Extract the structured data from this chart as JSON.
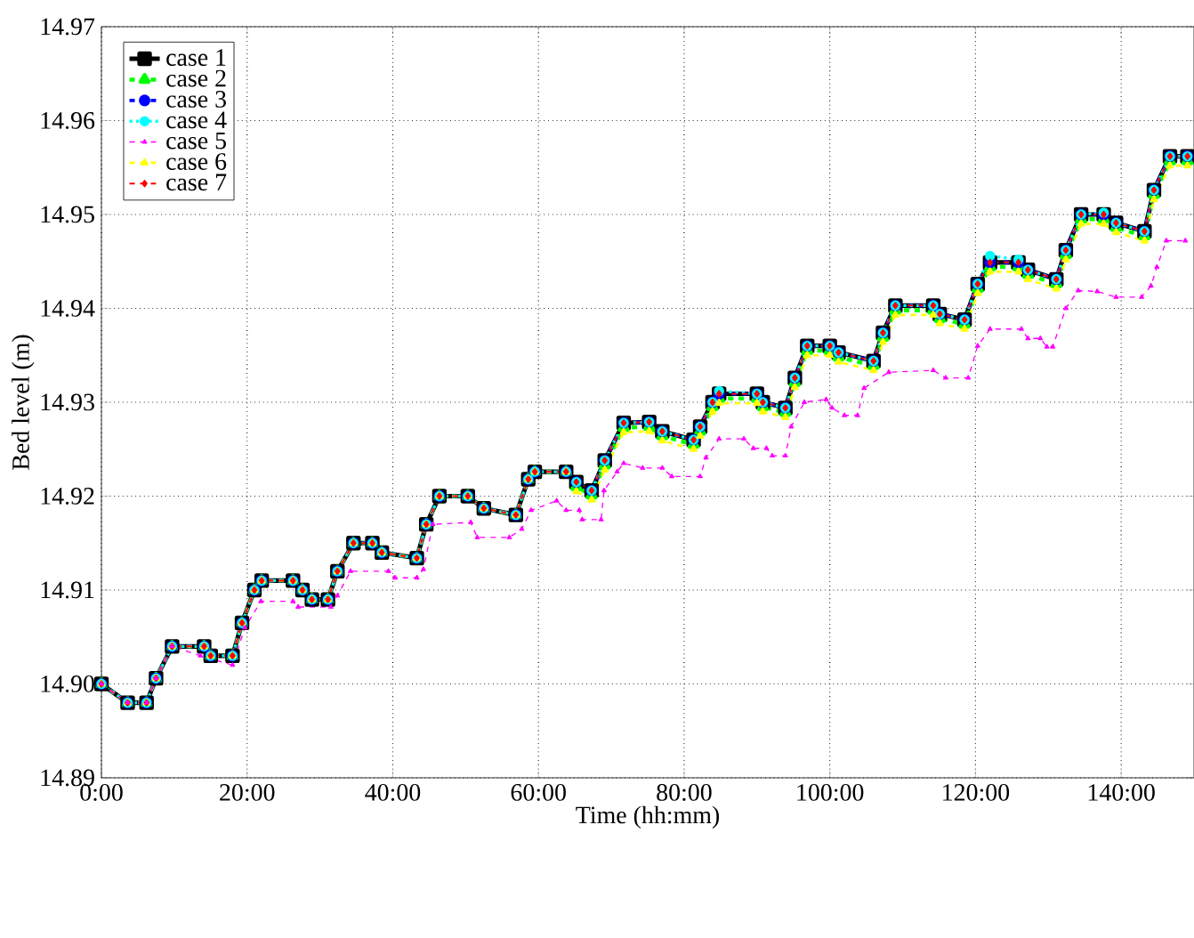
{
  "chart_data": {
    "type": "line",
    "xlabel": "Time (hh:mm)",
    "ylabel": "Bed level (m)",
    "x": [
      0,
      3.6,
      6.2,
      7.5,
      9.7,
      14.1,
      15,
      18,
      19.3,
      21,
      22,
      26.3,
      27.6,
      28.9,
      31.1,
      32.4,
      34.6,
      37.2,
      38.5,
      43.3,
      44.6,
      46.4,
      50.3,
      52.5,
      56.9,
      58.6,
      59.5,
      63.8,
      65.2,
      67.3,
      69.1,
      71.7,
      75.2,
      77,
      81.3,
      82.2,
      83.9,
      84.8,
      90,
      90.8,
      93.9,
      95.2,
      96.9,
      100,
      101.2,
      106,
      107.3,
      109,
      114.2,
      115.1,
      118.5,
      120.3,
      122,
      125.9,
      127.2,
      131.1,
      132.4,
      134.5,
      137.6,
      139.3,
      143.2,
      144.5,
      146.7,
      149.1
    ],
    "series": [
      {
        "name": "case 1",
        "color": "#000000",
        "marker": "square",
        "line_style": "solid",
        "values": [
          14.9,
          14.898,
          14.898,
          14.9006,
          14.904,
          14.904,
          14.903,
          14.903,
          14.9065,
          14.91,
          14.911,
          14.911,
          14.91,
          14.909,
          14.909,
          14.912,
          14.915,
          14.915,
          14.914,
          14.9134,
          14.917,
          14.92,
          14.92,
          14.9187,
          14.918,
          14.9218,
          14.9226,
          14.9226,
          14.9215,
          14.9206,
          14.9238,
          14.9278,
          14.9279,
          14.9269,
          14.926,
          14.9274,
          14.93,
          14.9309,
          14.9309,
          14.93,
          14.9294,
          14.9326,
          14.936,
          14.936,
          14.9353,
          14.9344,
          14.9374,
          14.9403,
          14.9403,
          14.9394,
          14.9388,
          14.9426,
          14.9449,
          14.9449,
          14.9441,
          14.9431,
          14.9462,
          14.95,
          14.95,
          14.9491,
          14.9482,
          14.9526,
          14.9562,
          14.9562
        ]
      },
      {
        "name": "case 2",
        "color": "#00ff00",
        "marker": "triangle",
        "line_style": "dashed",
        "values": [
          14.9,
          14.898,
          14.898,
          14.9006,
          14.904,
          14.904,
          14.903,
          14.903,
          14.9065,
          14.91,
          14.911,
          14.911,
          14.91,
          14.909,
          14.909,
          14.912,
          14.915,
          14.915,
          14.914,
          14.9134,
          14.917,
          14.92,
          14.92,
          14.9187,
          14.918,
          14.9218,
          14.9226,
          14.9226,
          14.921,
          14.9201,
          14.9233,
          14.9273,
          14.9274,
          14.9264,
          14.9255,
          14.9269,
          14.9295,
          14.9304,
          14.9304,
          14.9295,
          14.9289,
          14.9321,
          14.9355,
          14.9355,
          14.9348,
          14.9339,
          14.9369,
          14.9398,
          14.9398,
          14.9389,
          14.9383,
          14.9421,
          14.9444,
          14.9444,
          14.9436,
          14.9426,
          14.9457,
          14.9495,
          14.9495,
          14.9486,
          14.9477,
          14.9521,
          14.9557,
          14.9557
        ]
      },
      {
        "name": "case 3",
        "color": "#0000ff",
        "marker": "circle",
        "line_style": "dashed",
        "values": [
          14.9,
          14.898,
          14.898,
          14.9006,
          14.904,
          14.904,
          14.903,
          14.903,
          14.9065,
          14.91,
          14.911,
          14.911,
          14.91,
          14.909,
          14.909,
          14.912,
          14.915,
          14.915,
          14.914,
          14.9134,
          14.917,
          14.92,
          14.92,
          14.9187,
          14.918,
          14.9218,
          14.9226,
          14.9226,
          14.9215,
          14.9206,
          14.9238,
          14.9278,
          14.9279,
          14.9269,
          14.926,
          14.9274,
          14.93,
          14.9309,
          14.9309,
          14.93,
          14.9294,
          14.9326,
          14.936,
          14.936,
          14.9353,
          14.9344,
          14.9374,
          14.9403,
          14.9403,
          14.9394,
          14.9388,
          14.9426,
          14.9449,
          14.9449,
          14.9441,
          14.9431,
          14.9462,
          14.95,
          14.95,
          14.9491,
          14.9482,
          14.9526,
          14.9562,
          14.9562
        ]
      },
      {
        "name": "case 4",
        "color": "#00ffff",
        "marker": "circle",
        "line_style": "dotted",
        "values": [
          14.9,
          14.898,
          14.898,
          14.9006,
          14.904,
          14.904,
          14.903,
          14.903,
          14.9065,
          14.91,
          14.911,
          14.911,
          14.91,
          14.909,
          14.909,
          14.912,
          14.915,
          14.915,
          14.914,
          14.9134,
          14.917,
          14.92,
          14.92,
          14.9187,
          14.918,
          14.9218,
          14.9226,
          14.9226,
          14.9215,
          14.9206,
          14.9238,
          14.9278,
          14.9279,
          14.9269,
          14.926,
          14.9274,
          14.93,
          14.9312,
          14.9309,
          14.93,
          14.9294,
          14.9326,
          14.936,
          14.936,
          14.9353,
          14.9344,
          14.9374,
          14.9403,
          14.9403,
          14.9394,
          14.9388,
          14.9426,
          14.9456,
          14.9452,
          14.9441,
          14.9431,
          14.9462,
          14.95,
          14.9502,
          14.9491,
          14.9482,
          14.9526,
          14.9562,
          14.9562
        ]
      },
      {
        "name": "case 5",
        "color": "#ff00ff",
        "marker": "triangle",
        "line_style": "dashed",
        "x": [
          0,
          3.6,
          6.2,
          7.5,
          9.7,
          13.6,
          18,
          19.7,
          21.9,
          26.3,
          27,
          31.5,
          32.4,
          34.2,
          39.4,
          40.3,
          43.3,
          44.2,
          45.5,
          50.7,
          51.6,
          56,
          57.7,
          59,
          62.5,
          63.8,
          65.6,
          66,
          68.6,
          69,
          70.8,
          71.7,
          74.3,
          77,
          78.3,
          82.2,
          83,
          84.8,
          88.2,
          89.5,
          91.3,
          92.1,
          93.9,
          94.7,
          96.5,
          99.5,
          100.3,
          102,
          103.8,
          104.7,
          108.1,
          114.2,
          115.9,
          119,
          120.3,
          122,
          126.3,
          127.2,
          128.9,
          129.8,
          130.6,
          132.4,
          134.1,
          136.7,
          139.3,
          142.8,
          144.1,
          144.9,
          146.2,
          148.8
        ],
        "values": [
          14.9,
          14.898,
          14.898,
          14.9006,
          14.904,
          14.903,
          14.902,
          14.906,
          14.9088,
          14.9088,
          14.9082,
          14.9082,
          14.9094,
          14.912,
          14.912,
          14.9113,
          14.9113,
          14.9122,
          14.917,
          14.9172,
          14.9156,
          14.9156,
          14.9165,
          14.9185,
          14.9195,
          14.9185,
          14.9185,
          14.9175,
          14.9175,
          14.9206,
          14.9226,
          14.9235,
          14.923,
          14.923,
          14.9221,
          14.9221,
          14.9241,
          14.9261,
          14.9261,
          14.9251,
          14.9251,
          14.9243,
          14.9243,
          14.9274,
          14.93,
          14.9303,
          14.9294,
          14.9286,
          14.9286,
          14.9315,
          14.9332,
          14.9334,
          14.9326,
          14.9326,
          14.936,
          14.9378,
          14.9378,
          14.9368,
          14.9368,
          14.9359,
          14.9359,
          14.94,
          14.9419,
          14.9418,
          14.9412,
          14.9412,
          14.9424,
          14.9444,
          14.9472,
          14.9472
        ]
      },
      {
        "name": "case 6",
        "color": "#ffff00",
        "marker": "triangle",
        "line_style": "dashed",
        "values": [
          14.9,
          14.898,
          14.898,
          14.9006,
          14.904,
          14.904,
          14.903,
          14.903,
          14.9065,
          14.91,
          14.911,
          14.911,
          14.91,
          14.909,
          14.909,
          14.912,
          14.915,
          14.915,
          14.914,
          14.9134,
          14.917,
          14.92,
          14.92,
          14.9187,
          14.918,
          14.9218,
          14.9226,
          14.9226,
          14.9205,
          14.9196,
          14.9228,
          14.9268,
          14.9269,
          14.9259,
          14.925,
          14.9264,
          14.929,
          14.9299,
          14.9299,
          14.929,
          14.9284,
          14.9316,
          14.935,
          14.935,
          14.9343,
          14.9334,
          14.9364,
          14.9393,
          14.9393,
          14.9384,
          14.9378,
          14.9416,
          14.9439,
          14.9439,
          14.9431,
          14.9421,
          14.9452,
          14.949,
          14.949,
          14.9481,
          14.9472,
          14.9516,
          14.9552,
          14.9552
        ]
      },
      {
        "name": "case 7",
        "color": "#ff0000",
        "marker": "diamond",
        "line_style": "dashed",
        "values": [
          14.9,
          14.898,
          14.898,
          14.9006,
          14.904,
          14.904,
          14.903,
          14.903,
          14.9065,
          14.91,
          14.911,
          14.911,
          14.91,
          14.909,
          14.909,
          14.912,
          14.915,
          14.915,
          14.914,
          14.9134,
          14.917,
          14.92,
          14.92,
          14.9187,
          14.918,
          14.9218,
          14.9226,
          14.9226,
          14.9215,
          14.9206,
          14.9238,
          14.9278,
          14.9279,
          14.9269,
          14.926,
          14.9274,
          14.93,
          14.9309,
          14.9309,
          14.93,
          14.9294,
          14.9326,
          14.936,
          14.936,
          14.9353,
          14.9344,
          14.9374,
          14.9403,
          14.9403,
          14.9394,
          14.9388,
          14.9426,
          14.9449,
          14.9449,
          14.9441,
          14.9431,
          14.9462,
          14.95,
          14.95,
          14.9491,
          14.9482,
          14.9526,
          14.9562,
          14.9562
        ]
      }
    ],
    "xlim": [
      0,
      150
    ],
    "xticks": [
      {
        "value": 0,
        "label": "0:00"
      },
      {
        "value": 20,
        "label": "20:00"
      },
      {
        "value": 40,
        "label": "40:00"
      },
      {
        "value": 60,
        "label": "60:00"
      },
      {
        "value": 80,
        "label": "80:00"
      },
      {
        "value": 100,
        "label": "100:00"
      },
      {
        "value": 120,
        "label": "120:00"
      },
      {
        "value": 140,
        "label": "140:00"
      }
    ],
    "ylim": [
      14.89,
      14.97
    ],
    "yticks": [
      14.89,
      {
        "value": 14.9,
        "label": "14.90"
      },
      14.91,
      14.92,
      14.93,
      14.94,
      14.95,
      14.96,
      14.97
    ],
    "grid": true,
    "legend": "top left"
  }
}
